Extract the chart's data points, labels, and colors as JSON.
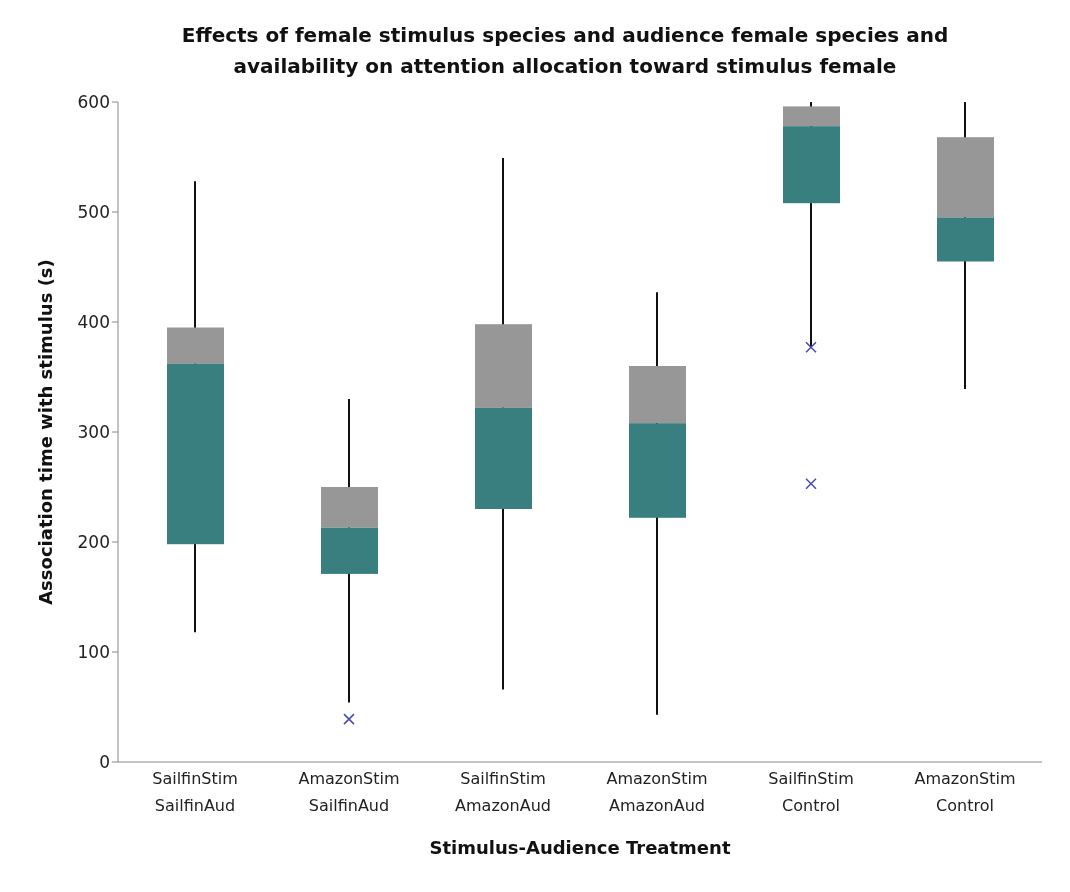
{
  "chart_data": {
    "type": "box",
    "title": "Effects of female stimulus species and audience female species and availability on attention allocation toward stimulus female",
    "xlabel": "Stimulus-Audience Treatment",
    "ylabel": "Association time with stimulus (s)",
    "categories": [
      "SailfinStim SailfinAud",
      "AmazonStim SailfinAud",
      "SailfinStim AmazonAud",
      "AmazonStim AmazonAud",
      "SailfinStim Control",
      "AmazonStim Control"
    ],
    "series": [
      {
        "color": "#3a7f7f",
        "boxes": [
          {
            "low": 118,
            "q1": 198,
            "median": 362,
            "q3": 395,
            "high": 528
          },
          {
            "low": 54,
            "q1": 171,
            "median": 213,
            "q3": 250,
            "high": 330
          },
          {
            "low": 66,
            "q1": 230,
            "median": 322,
            "q3": 398,
            "high": 549
          },
          {
            "low": 43,
            "q1": 222,
            "median": 308,
            "q3": 360,
            "high": 427
          },
          {
            "low": 377,
            "q1": 508,
            "median": 578,
            "q3": 596,
            "high": 600
          },
          {
            "low": 339,
            "q1": 455,
            "median": 495,
            "q3": 568,
            "high": 600
          }
        ]
      },
      {
        "type": "scatter",
        "color": "#4a4ab0",
        "marker": "cross",
        "x": [
          "AmazonStim SailfinAud",
          "SailfinStim Control",
          "SailfinStim Control"
        ],
        "values": [
          39,
          377,
          253
        ]
      }
    ],
    "ylim": [
      0,
      600
    ],
    "yticks": [
      0,
      100,
      200,
      300,
      400,
      500,
      600
    ],
    "grid": false,
    "legend": false
  }
}
